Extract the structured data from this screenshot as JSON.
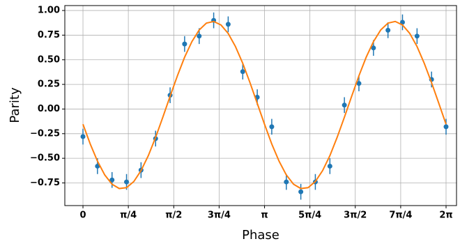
{
  "chart_data": {
    "type": "scatter",
    "x_label": "Phase",
    "y_label": "Parity",
    "xlim": [
      -0.314,
      6.464
    ],
    "ylim": [
      -0.98,
      1.05
    ],
    "xticks": [
      0,
      {
        "value": 0.785,
        "label": "π/4"
      },
      {
        "value": 1.571,
        "label": "π/2"
      },
      {
        "value": 2.356,
        "label": "3π/4"
      },
      {
        "value": 3.142,
        "label": "π"
      },
      {
        "value": 3.927,
        "label": "5π/4"
      },
      {
        "value": 4.712,
        "label": "3π/2"
      },
      {
        "value": 5.498,
        "label": "7π/4"
      },
      {
        "value": 6.283,
        "label": "2π"
      }
    ],
    "yticks": [
      {
        "value": -0.75,
        "label": "−0.75"
      },
      {
        "value": -0.5,
        "label": "−0.50"
      },
      {
        "value": -0.25,
        "label": "−0.25"
      },
      {
        "value": 0,
        "label": "0.00"
      },
      {
        "value": 0.25,
        "label": "0.25"
      },
      {
        "value": 0.5,
        "label": "0.50"
      },
      {
        "value": 0.75,
        "label": "0.75"
      },
      {
        "value": 1.0,
        "label": "1.00"
      }
    ],
    "grid": true,
    "series": [
      {
        "type": "errorbar",
        "color": "#1f77b4",
        "x": [
          0,
          0.251,
          0.503,
          0.754,
          1.005,
          1.257,
          1.508,
          1.759,
          2.011,
          2.262,
          2.513,
          2.765,
          3.016,
          3.267,
          3.519,
          3.77,
          4.021,
          4.273,
          4.524,
          4.775,
          5.027,
          5.278,
          5.529,
          5.781,
          6.032,
          6.283
        ],
        "values": [
          -0.28,
          -0.58,
          -0.72,
          -0.74,
          -0.62,
          -0.3,
          0.14,
          0.66,
          0.74,
          0.9,
          0.86,
          0.38,
          0.12,
          -0.18,
          -0.74,
          -0.84,
          -0.74,
          -0.58,
          0.04,
          0.26,
          0.62,
          0.8,
          0.88,
          0.74,
          0.3,
          -0.18
        ],
        "errors": [
          0.08,
          0.08,
          0.08,
          0.08,
          0.08,
          0.08,
          0.08,
          0.08,
          0.08,
          0.08,
          0.08,
          0.08,
          0.08,
          0.08,
          0.08,
          0.08,
          0.08,
          0.08,
          0.08,
          0.08,
          0.08,
          0.08,
          0.08,
          0.08,
          0.08,
          0.08
        ]
      },
      {
        "type": "line",
        "color": "#ff7f0e",
        "x": [
          0,
          0.126,
          0.251,
          0.377,
          0.503,
          0.628,
          0.754,
          0.88,
          1.005,
          1.131,
          1.257,
          1.382,
          1.508,
          1.634,
          1.759,
          1.885,
          2.011,
          2.136,
          2.262,
          2.388,
          2.513,
          2.639,
          2.765,
          2.89,
          3.016,
          3.142,
          3.267,
          3.393,
          3.519,
          3.644,
          3.77,
          3.896,
          4.021,
          4.147,
          4.273,
          4.398,
          4.524,
          4.65,
          4.775,
          4.901,
          5.027,
          5.152,
          5.278,
          5.404,
          5.529,
          5.655,
          5.781,
          5.906,
          6.032,
          6.158,
          6.283
        ],
        "values": [
          -0.154,
          -0.355,
          -0.529,
          -0.669,
          -0.763,
          -0.807,
          -0.798,
          -0.736,
          -0.625,
          -0.473,
          -0.288,
          -0.083,
          0.13,
          0.337,
          0.526,
          0.684,
          0.802,
          0.872,
          0.889,
          0.853,
          0.767,
          0.634,
          0.464,
          0.268,
          0.057,
          -0.155,
          -0.355,
          -0.529,
          -0.669,
          -0.763,
          -0.807,
          -0.798,
          -0.736,
          -0.625,
          -0.473,
          -0.288,
          -0.083,
          0.13,
          0.337,
          0.526,
          0.684,
          0.802,
          0.872,
          0.889,
          0.853,
          0.767,
          0.634,
          0.464,
          0.268,
          0.057,
          -0.155
        ]
      }
    ]
  }
}
